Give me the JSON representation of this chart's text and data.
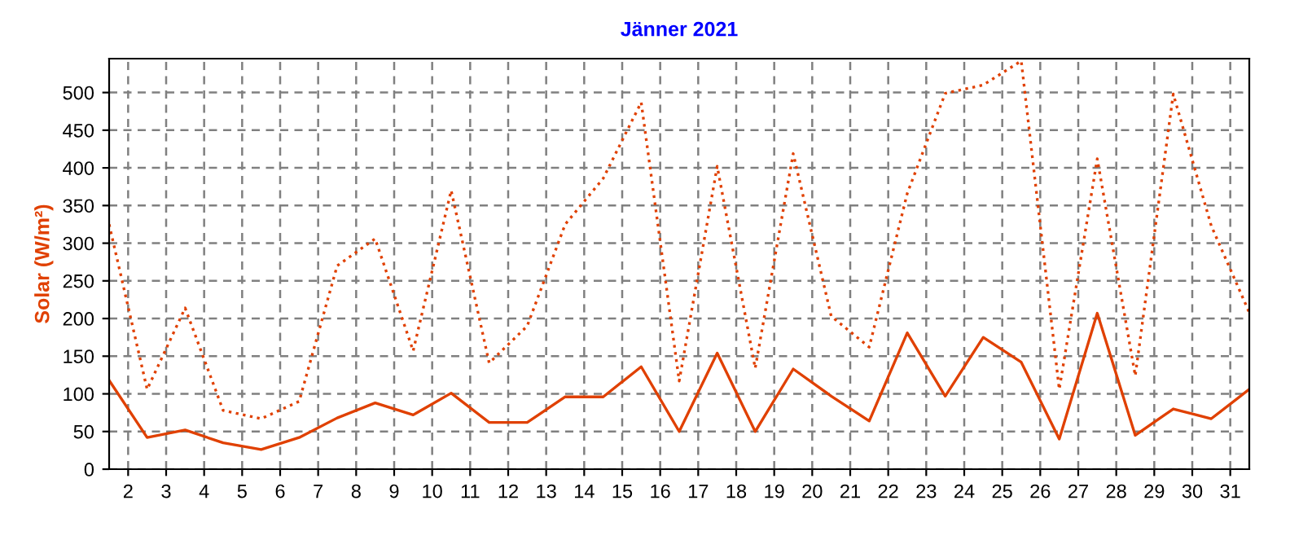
{
  "chart_data": {
    "type": "line",
    "title": "Jänner 2021",
    "ylabel": "Solar (W/m²)",
    "x": [
      1.5,
      2.5,
      3.5,
      4.5,
      5.5,
      6.5,
      7.5,
      8.5,
      9.5,
      10.5,
      11.5,
      12.5,
      13.5,
      14.5,
      15.5,
      16.5,
      17.5,
      18.5,
      19.5,
      20.5,
      21.5,
      22.5,
      23.5,
      24.5,
      25.5,
      26.5,
      27.5,
      28.5,
      29.5,
      30.5,
      31.5
    ],
    "series": [
      {
        "color": "#e04000",
        "line_style": "dotted",
        "values": [
          325,
          106,
          214,
          78,
          67,
          90,
          270,
          306,
          157,
          370,
          141,
          190,
          325,
          386,
          487,
          117,
          402,
          134,
          419,
          203,
          162,
          366,
          499,
          510,
          542,
          106,
          412,
          124,
          498,
          323,
          208
        ]
      },
      {
        "color": "#e04000",
        "line_style": "solid",
        "values": [
          118,
          42,
          52,
          35,
          26,
          42,
          68,
          88,
          72,
          101,
          62,
          62,
          96,
          96,
          136,
          50,
          154,
          50,
          133,
          97,
          64,
          181,
          97,
          175,
          142,
          40,
          207,
          45,
          80,
          67,
          106
        ]
      }
    ],
    "xlim": [
      1.5,
      31.5
    ],
    "xticks": [
      2,
      3,
      4,
      5,
      6,
      7,
      8,
      9,
      10,
      11,
      12,
      13,
      14,
      15,
      16,
      17,
      18,
      19,
      20,
      21,
      22,
      23,
      24,
      25,
      26,
      27,
      28,
      29,
      30,
      31
    ],
    "ylim": [
      0,
      545
    ],
    "yticks": [
      0,
      50,
      100,
      150,
      200,
      250,
      300,
      350,
      400,
      450,
      500
    ],
    "grid": true,
    "legend": false,
    "marker": "none"
  }
}
